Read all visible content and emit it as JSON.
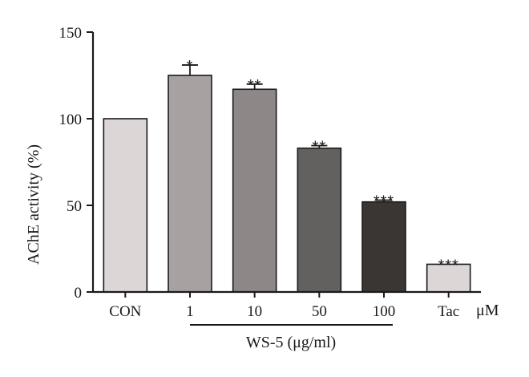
{
  "chart_data": {
    "type": "bar",
    "categories": [
      "CON",
      "1",
      "10",
      "50",
      "100",
      "Tac"
    ],
    "values": [
      100,
      125,
      117,
      83,
      52,
      16
    ],
    "errors": [
      0,
      6,
      3,
      1.5,
      1,
      0
    ],
    "significance": [
      "",
      "*",
      "**",
      "**",
      "***",
      "***"
    ],
    "bar_colors": [
      "#dcd7d6",
      "#a8a1a2",
      "#8d8787",
      "#636060",
      "#3a3634",
      "#dcd7d6"
    ],
    "ylabel": "AChE activity (%)",
    "ylim": [
      0,
      150
    ],
    "yticks": [
      0,
      50,
      100,
      150
    ],
    "unit_label": "μM",
    "group_label": "WS-5 (μg/ml)",
    "grid": false
  }
}
